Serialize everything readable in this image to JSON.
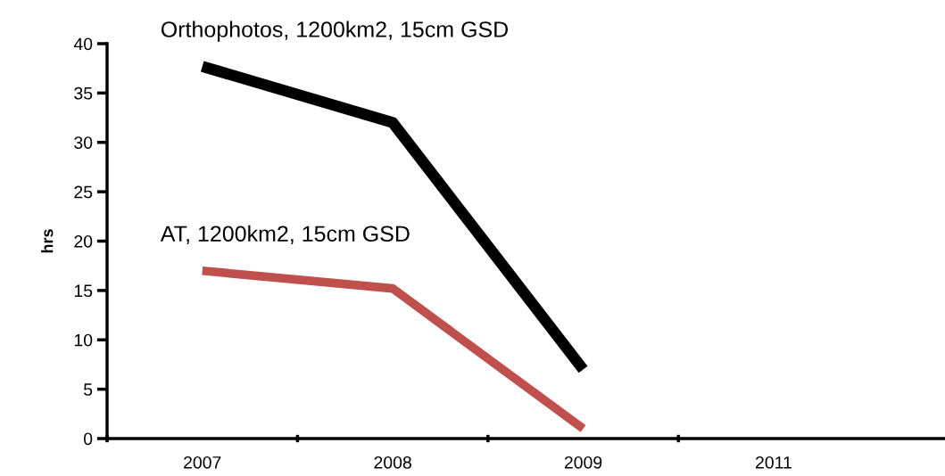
{
  "chart_data": {
    "type": "line",
    "ylabel": "hrs",
    "categories": [
      "2007",
      "2008",
      "2009",
      "2011"
    ],
    "series": [
      {
        "name": "Orthophotos, 1200km2, 15cm GSD",
        "color": "#000000",
        "values": [
          37.7,
          32.0,
          7.0,
          null
        ]
      },
      {
        "name": "AT, 1200km2, 15cm GSD",
        "color": "#c0504d",
        "values": [
          17.0,
          15.2,
          1.0,
          null
        ]
      }
    ],
    "ylim": [
      0,
      40
    ],
    "yticks": [
      0,
      5,
      10,
      15,
      20,
      25,
      30,
      35,
      40
    ],
    "grid": false,
    "legend": false,
    "marker": "none",
    "line_style": "solid"
  }
}
